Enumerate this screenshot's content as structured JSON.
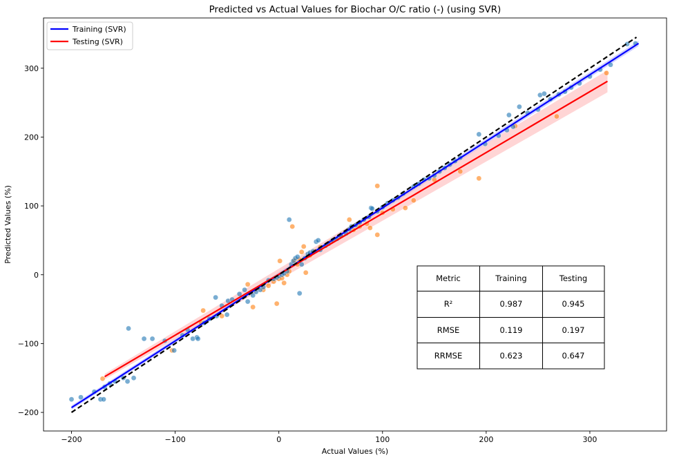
{
  "chart_data": {
    "type": "scatter",
    "title": "Predicted vs Actual Values for Biochar O/C ratio (-) (using SVR)",
    "xlabel": "Actual Values (%)",
    "ylabel": "Predicted Values (%)",
    "xlim": [
      -227,
      374
    ],
    "ylim": [
      -227,
      373
    ],
    "xticks": [
      -200,
      -100,
      0,
      100,
      200,
      300
    ],
    "yticks": [
      -200,
      -100,
      0,
      100,
      200,
      300
    ],
    "grid": false,
    "legend": {
      "position": "top-left",
      "entries": [
        {
          "label": "Training (SVR)",
          "color": "#0000ff"
        },
        {
          "label": "Testing (SVR)",
          "color": "#ff0000"
        }
      ]
    },
    "colors": {
      "training_points": "#1f77b4",
      "testing_points": "#ff7f0e",
      "training_fit": "#0000ff",
      "testing_fit": "#ff0000",
      "identity": "#000000",
      "testing_ci": "#ffb3b3"
    },
    "reference_line": {
      "style": "dashed",
      "x": [
        -200,
        345
      ],
      "y": [
        -200,
        345
      ]
    },
    "fit_lines": [
      {
        "series": "Training (SVR)",
        "x": [
          -200,
          347
        ],
        "y": [
          -193,
          336
        ],
        "ci": [
          3,
          4
        ]
      },
      {
        "series": "Testing (SVR)",
        "x": [
          -168,
          317
        ],
        "y": [
          -148,
          281
        ],
        "ci": [
          4,
          16
        ]
      }
    ],
    "series": [
      {
        "name": "Training (SVR)",
        "role": "training",
        "points": [
          [
            -200,
            -181
          ],
          [
            -191,
            -178
          ],
          [
            -178,
            -170
          ],
          [
            -172,
            -181
          ],
          [
            -169,
            -181
          ],
          [
            -168,
            -163
          ],
          [
            -163,
            -158
          ],
          [
            -158,
            -155
          ],
          [
            -150,
            -150
          ],
          [
            -146,
            -155
          ],
          [
            -145,
            -78
          ],
          [
            -140,
            -150
          ],
          [
            -130,
            -93
          ],
          [
            -122,
            -93
          ],
          [
            -110,
            -96
          ],
          [
            -101,
            -110
          ],
          [
            -93,
            -88
          ],
          [
            -88,
            -80
          ],
          [
            -83,
            -93
          ],
          [
            -79,
            -91
          ],
          [
            -78,
            -93
          ],
          [
            -72,
            -70
          ],
          [
            -67,
            -64
          ],
          [
            -60,
            -60
          ],
          [
            -61,
            -33
          ],
          [
            -55,
            -45
          ],
          [
            -50,
            -58
          ],
          [
            -49,
            -38
          ],
          [
            -45,
            -36
          ],
          [
            -38,
            -28
          ],
          [
            -33,
            -22
          ],
          [
            -30,
            -39
          ],
          [
            -25,
            -30
          ],
          [
            -22,
            -25
          ],
          [
            -18,
            -22
          ],
          [
            -15,
            -18
          ],
          [
            -10,
            -8
          ],
          [
            -5,
            -6
          ],
          [
            -2,
            -4
          ],
          [
            0,
            -2
          ],
          [
            3,
            0
          ],
          [
            5,
            2
          ],
          [
            8,
            5
          ],
          [
            10,
            80
          ],
          [
            12,
            15
          ],
          [
            14,
            20
          ],
          [
            16,
            24
          ],
          [
            18,
            26
          ],
          [
            20,
            -27
          ],
          [
            22,
            15
          ],
          [
            25,
            24
          ],
          [
            28,
            30
          ],
          [
            30,
            32
          ],
          [
            33,
            34
          ],
          [
            36,
            48
          ],
          [
            38,
            50
          ],
          [
            40,
            36
          ],
          [
            45,
            42
          ],
          [
            48,
            45
          ],
          [
            52,
            50
          ],
          [
            56,
            52
          ],
          [
            60,
            56
          ],
          [
            65,
            60
          ],
          [
            68,
            66
          ],
          [
            70,
            70
          ],
          [
            74,
            72
          ],
          [
            78,
            76
          ],
          [
            82,
            80
          ],
          [
            87,
            84
          ],
          [
            89,
            97
          ],
          [
            90,
            96
          ],
          [
            95,
            92
          ],
          [
            100,
            98
          ],
          [
            105,
            104
          ],
          [
            110,
            108
          ],
          [
            115,
            112
          ],
          [
            120,
            118
          ],
          [
            130,
            128
          ],
          [
            132,
            130
          ],
          [
            135,
            132
          ],
          [
            140,
            138
          ],
          [
            145,
            140
          ],
          [
            150,
            144
          ],
          [
            155,
            150
          ],
          [
            160,
            155
          ],
          [
            165,
            160
          ],
          [
            170,
            165
          ],
          [
            175,
            170
          ],
          [
            193,
            204
          ],
          [
            199,
            190
          ],
          [
            212,
            202
          ],
          [
            220,
            210
          ],
          [
            222,
            232
          ],
          [
            226,
            215
          ],
          [
            232,
            244
          ],
          [
            240,
            235
          ],
          [
            250,
            240
          ],
          [
            252,
            261
          ],
          [
            256,
            263
          ],
          [
            262,
            255
          ],
          [
            270,
            262
          ],
          [
            276,
            266
          ],
          [
            282,
            272
          ],
          [
            290,
            278
          ],
          [
            300,
            288
          ],
          [
            310,
            298
          ],
          [
            320,
            305
          ],
          [
            336,
            335
          ],
          [
            344,
            336
          ]
        ]
      },
      {
        "name": "Testing (SVR)",
        "role": "testing",
        "points": [
          [
            -170,
            -151
          ],
          [
            -103,
            -110
          ],
          [
            -75,
            -70
          ],
          [
            -73,
            -52
          ],
          [
            -55,
            -60
          ],
          [
            -30,
            -14
          ],
          [
            -25,
            -47
          ],
          [
            -15,
            -22
          ],
          [
            -10,
            -16
          ],
          [
            -5,
            -10
          ],
          [
            -2,
            -42
          ],
          [
            0,
            -6
          ],
          [
            1,
            20
          ],
          [
            3,
            -5
          ],
          [
            5,
            -12
          ],
          [
            8,
            0
          ],
          [
            10,
            5
          ],
          [
            13,
            70
          ],
          [
            15,
            21
          ],
          [
            18,
            15
          ],
          [
            20,
            22
          ],
          [
            22,
            33
          ],
          [
            24,
            41
          ],
          [
            26,
            3
          ],
          [
            30,
            28
          ],
          [
            35,
            34
          ],
          [
            40,
            40
          ],
          [
            50,
            48
          ],
          [
            60,
            56
          ],
          [
            68,
            80
          ],
          [
            72,
            65
          ],
          [
            78,
            70
          ],
          [
            85,
            74
          ],
          [
            88,
            68
          ],
          [
            95,
            129
          ],
          [
            95,
            58
          ],
          [
            100,
            90
          ],
          [
            110,
            95
          ],
          [
            122,
            97
          ],
          [
            130,
            108
          ],
          [
            150,
            138
          ],
          [
            175,
            150
          ],
          [
            193,
            140
          ],
          [
            228,
            216
          ],
          [
            268,
            230
          ],
          [
            316,
            293
          ]
        ]
      }
    ]
  },
  "table": {
    "headers": [
      "Metric",
      "Training",
      "Testing"
    ],
    "rows": [
      [
        "R²",
        "0.987",
        "0.945"
      ],
      [
        "RMSE",
        "0.119",
        "0.197"
      ],
      [
        "RRMSE",
        "0.623",
        "0.647"
      ]
    ]
  }
}
